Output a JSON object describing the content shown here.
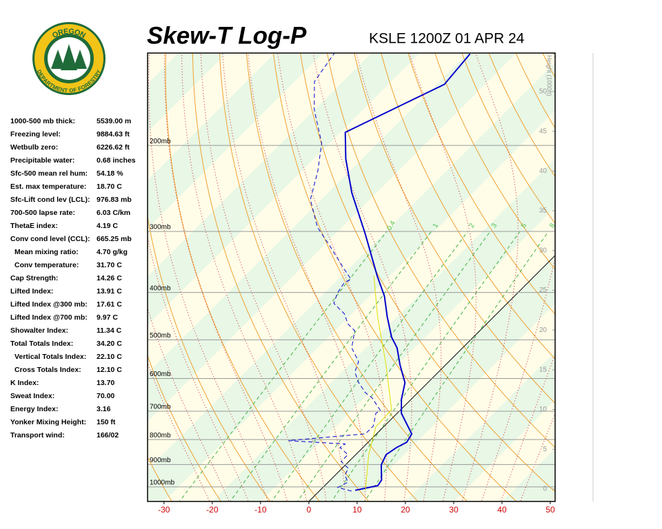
{
  "header": {
    "logo_top": "OREGON",
    "logo_bottom": "DEPARTMENT OF FORESTRY",
    "title": "Skew-T Log-P",
    "station": "KSLE 1200Z 01 APR 24"
  },
  "stats": [
    {
      "label": "1000-500 mb thick:",
      "value": "5539.00 m"
    },
    {
      "label": "Freezing level:",
      "value": "9884.63 ft"
    },
    {
      "label": "Wetbulb zero:",
      "value": "6226.62 ft"
    },
    {
      "label": "Precipitable water:",
      "value": "0.68 inches"
    },
    {
      "label": "Sfc-500 mean rel hum:",
      "value": "54.18 %"
    },
    {
      "label": "Est. max temperature:",
      "value": "18.70 C"
    },
    {
      "label": "Sfc-Lift cond lev (LCL):",
      "value": "976.83 mb"
    },
    {
      "label": "700-500 lapse rate:",
      "value": "6.03 C/km"
    },
    {
      "label": "ThetaE index:",
      "value": "4.19 C"
    },
    {
      "label": "Conv cond level (CCL):",
      "value": "665.25 mb",
      "sub": [
        {
          "label": "Mean mixing ratio:",
          "value": "4.70 g/kg"
        },
        {
          "label": "Conv temperature:",
          "value": "31.70 C"
        }
      ]
    },
    {
      "label": "Cap Strength:",
      "value": "14.26 C"
    },
    {
      "label": "Lifted Index:",
      "value": "13.91 C"
    },
    {
      "label": "Lifted Index @300 mb:",
      "value": "17.61 C"
    },
    {
      "label": "Lifted Index @700 mb:",
      "value": "9.97 C"
    },
    {
      "label": "Showalter Index:",
      "value": "11.34 C"
    },
    {
      "label": "Total Totals Index:",
      "value": "34.20 C",
      "sub": [
        {
          "label": "Vertical Totals Index:",
          "value": "22.10 C"
        },
        {
          "label": "Cross Totals Index:",
          "value": "12.10 C"
        }
      ]
    },
    {
      "label": "K Index:",
      "value": "13.70"
    },
    {
      "label": "Sweat Index:",
      "value": "70.00"
    },
    {
      "label": "Energy Index:",
      "value": "3.16"
    },
    {
      "label": "Yonker Mixing Height:",
      "value": "150 ft"
    },
    {
      "label": "Transport wind:",
      "value": "166/02"
    }
  ],
  "chart_data": {
    "type": "skewt",
    "xlim": [
      -33.4,
      51
    ],
    "xticks": [
      -30,
      -20,
      -10,
      0,
      10,
      20,
      30,
      40,
      50
    ],
    "plim": [
      1071,
      129.4
    ],
    "pticks": [
      {
        "value": 200,
        "label": "200mb"
      },
      {
        "value": 300,
        "label": "300mb"
      },
      {
        "value": 400,
        "label": "400mb"
      },
      {
        "value": 500,
        "label": "500mb"
      },
      {
        "value": 600,
        "label": "600mb"
      },
      {
        "value": 700,
        "label": "700mb"
      },
      {
        "value": 800,
        "label": "800mb"
      },
      {
        "value": 900,
        "label": "900mb"
      },
      {
        "value": 1000,
        "label": "1000mb"
      }
    ],
    "height_label": "Height (1000ft)",
    "height_lim": [
      -1.56,
      54.85
    ],
    "height_ticks": [
      0,
      5,
      10,
      15,
      20,
      25,
      30,
      35,
      40,
      45,
      50
    ],
    "mixing_ratios": [
      0.4,
      1,
      2,
      3,
      5,
      8
    ],
    "series": [
      {
        "color": "#0000cc",
        "style": "solid",
        "width": 2,
        "pressure": [
          1016,
          994,
          968,
          901,
          859,
          831,
          810,
          779,
          742,
          707,
          662,
          612,
          563,
          519,
          494,
          449,
          407,
          370,
          304,
          250,
          213,
          188,
          150,
          130
        ],
        "values": [
          7.3,
          11.0,
          10.6,
          7.4,
          6.3,
          7.0,
          8.0,
          7.3,
          4.1,
          0.9,
          -2.0,
          -4.7,
          -9.4,
          -13.6,
          -16.9,
          -22.0,
          -26.9,
          -32.6,
          -43.7,
          -55.1,
          -63.4,
          -69.0,
          -58.4,
          -59.4
        ]
      },
      {
        "color": "#0000cc",
        "style": "dashed",
        "width": 1,
        "pressure": [
          1020,
          1003,
          978,
          946,
          916,
          887,
          859,
          831,
          817,
          804,
          779,
          750,
          707,
          697,
          658,
          641,
          611,
          582,
          554,
          519,
          479,
          464,
          442,
          421,
          401,
          382,
          376,
          358,
          324,
          294,
          258,
          226,
          198,
          169,
          148,
          129
        ],
        "values": [
          6.7,
          3.1,
          4.1,
          2.0,
          1.3,
          -1.6,
          -1.6,
          -4.7,
          -4.4,
          -16.9,
          -2.3,
          -2.3,
          -4.4,
          -4.1,
          -8.3,
          -10.9,
          -14.4,
          -17.3,
          -18.7,
          -23.0,
          -25.9,
          -28.7,
          -31.6,
          -35.9,
          -37.3,
          -38.0,
          -37.3,
          -40.9,
          -48.0,
          -55.1,
          -62.3,
          -66.6,
          -71.6,
          -80.1,
          -85.9,
          -87.7
        ]
      },
      {
        "color": "#e0e000",
        "style": "solid",
        "width": 1,
        "pressure": [
          1016,
          859,
          754,
          695,
          563,
          511,
          449,
          370
        ],
        "values": [
          9.4,
          2.7,
          -1.6,
          -1.9,
          -12.3,
          -17.3,
          -24.0,
          -33.3
        ]
      }
    ]
  }
}
